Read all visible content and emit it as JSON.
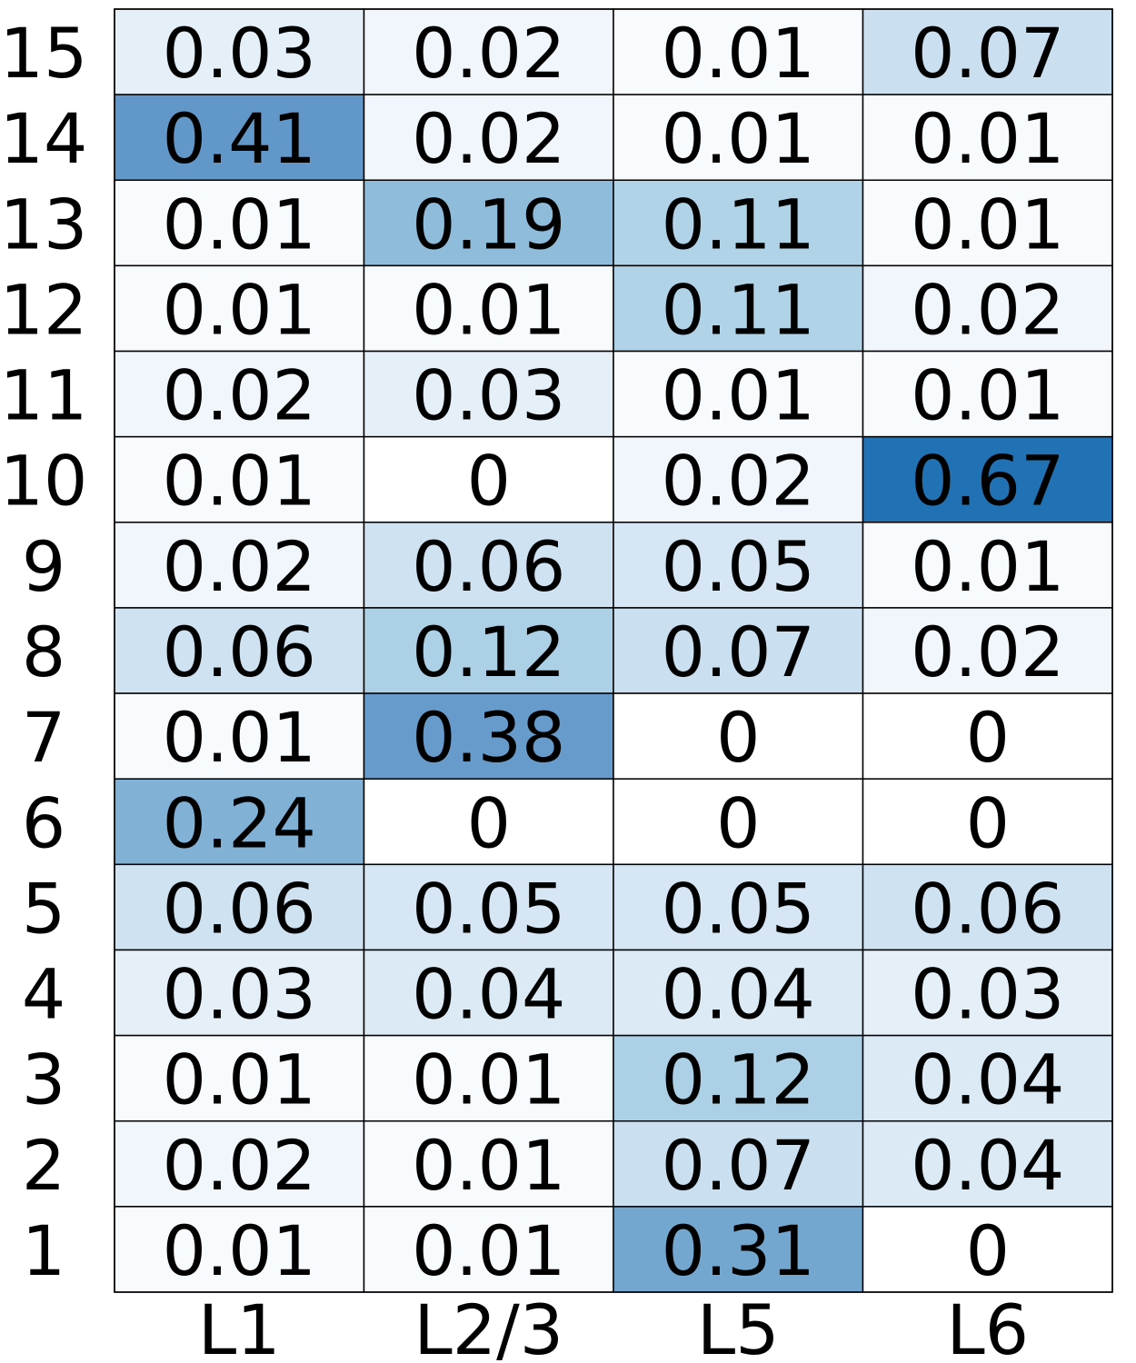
{
  "chart_data": {
    "type": "heatmap",
    "title": "",
    "xlabel": "",
    "ylabel": "",
    "columns": [
      "L1",
      "L2/3",
      "L5",
      "L6"
    ],
    "rows": [
      "15",
      "14",
      "13",
      "12",
      "11",
      "10",
      "9",
      "8",
      "7",
      "6",
      "5",
      "4",
      "3",
      "2",
      "1"
    ],
    "values": [
      [
        0.03,
        0.02,
        0.01,
        0.07
      ],
      [
        0.41,
        0.02,
        0.01,
        0.01
      ],
      [
        0.01,
        0.19,
        0.11,
        0.01
      ],
      [
        0.01,
        0.01,
        0.11,
        0.02
      ],
      [
        0.02,
        0.03,
        0.01,
        0.01
      ],
      [
        0.01,
        0,
        0.02,
        0.67
      ],
      [
        0.02,
        0.06,
        0.05,
        0.01
      ],
      [
        0.06,
        0.12,
        0.07,
        0.02
      ],
      [
        0.01,
        0.38,
        0,
        0
      ],
      [
        0.24,
        0,
        0,
        0
      ],
      [
        0.06,
        0.05,
        0.05,
        0.06
      ],
      [
        0.03,
        0.04,
        0.04,
        0.03
      ],
      [
        0.01,
        0.01,
        0.12,
        0.04
      ],
      [
        0.02,
        0.01,
        0.07,
        0.04
      ],
      [
        0.01,
        0.01,
        0.31,
        0
      ]
    ],
    "color_range": [
      0,
      0.67
    ],
    "colormap": "Blues",
    "cell_border_color": "#000000",
    "colorbar": false
  }
}
